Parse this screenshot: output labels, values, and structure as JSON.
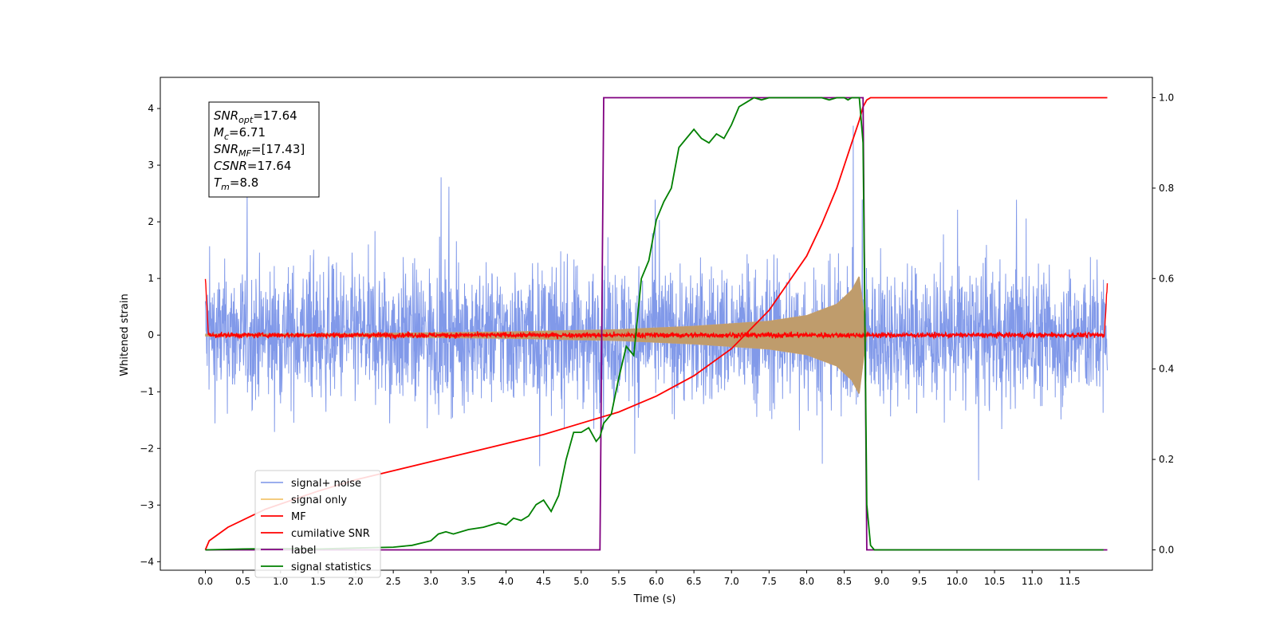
{
  "chart_data": {
    "type": "line",
    "xlabel": "Time (s)",
    "ylabel_left": "Whitened strain",
    "ylabel_right": "",
    "xlim": [
      -0.6,
      12.6
    ],
    "ylim_left": [
      -4.15,
      4.55
    ],
    "ylim_right": [
      -0.045,
      1.045
    ],
    "grid": false,
    "legend_position": "lower-left",
    "x_ticks": [
      "0.0",
      "0.5",
      "1.0",
      "1.5",
      "2.0",
      "2.5",
      "3.0",
      "3.5",
      "4.0",
      "4.5",
      "5.0",
      "5.5",
      "6.0",
      "6.5",
      "7.0",
      "7.5",
      "8.0",
      "8.5",
      "9.0",
      "9.5",
      "10.0",
      "10.5",
      "11.0",
      "11.5"
    ],
    "y_ticks_left": [
      "−4",
      "−3",
      "−2",
      "−1",
      "0",
      "1",
      "2",
      "3",
      "4"
    ],
    "y_ticks_right": [
      "0.0",
      "0.2",
      "0.4",
      "0.6",
      "0.8",
      "1.0"
    ],
    "annotation": {
      "lines": [
        {
          "base": "SNR",
          "sub": "opt",
          "value": "=17.64"
        },
        {
          "base": "M",
          "sub": "c",
          "value": "=6.71"
        },
        {
          "base": "SNR",
          "sub": "MF",
          "value": "=[17.43]"
        },
        {
          "base": "CSNR",
          "sub": "",
          "value": "=17.64"
        },
        {
          "base": "T",
          "sub": "m",
          "value": "=8.8"
        }
      ]
    },
    "series": [
      {
        "name": "signal+ noise",
        "axis": "left",
        "color": "#7a93e8",
        "style": "noise",
        "x_range": [
          0.0,
          12.0
        ],
        "typical_range": [
          -1.6,
          1.7
        ],
        "peak_range": [
          -3.8,
          4.15
        ]
      },
      {
        "name": "signal only",
        "axis": "left",
        "color": "#f2c46d",
        "style": "chirp",
        "x_range": [
          0.0,
          8.8
        ],
        "envelope": {
          "x": [
            0.0,
            2.0,
            4.0,
            5.5,
            6.5,
            7.5,
            8.0,
            8.4,
            8.6,
            8.7,
            8.8
          ],
          "amp": [
            0.02,
            0.03,
            0.06,
            0.1,
            0.16,
            0.25,
            0.35,
            0.55,
            0.8,
            1.05,
            0.0
          ]
        }
      },
      {
        "name": "MF",
        "axis": "left",
        "color": "#ff0000",
        "style": "mf",
        "x_range": [
          0.0,
          12.0
        ],
        "edge_value": 1.0,
        "noise_amp": 0.05
      },
      {
        "name": "cumilative SNR",
        "axis": "right",
        "color": "#ff0000",
        "x": [
          0.0,
          0.05,
          0.3,
          0.8,
          1.5,
          2.0,
          2.5,
          3.0,
          3.5,
          4.0,
          4.5,
          5.0,
          5.5,
          6.0,
          6.5,
          7.0,
          7.5,
          8.0,
          8.2,
          8.4,
          8.5,
          8.6,
          8.7,
          8.75,
          8.8,
          8.85,
          12.0
        ],
        "values": [
          0.0,
          0.02,
          0.05,
          0.09,
          0.13,
          0.155,
          0.175,
          0.195,
          0.215,
          0.235,
          0.255,
          0.28,
          0.305,
          0.34,
          0.385,
          0.445,
          0.53,
          0.65,
          0.72,
          0.8,
          0.85,
          0.9,
          0.95,
          0.98,
          0.995,
          1.0,
          1.0
        ]
      },
      {
        "name": "label",
        "axis": "right",
        "color": "#800080",
        "x": [
          0.0,
          5.25,
          5.3,
          8.75,
          8.8,
          12.0
        ],
        "values": [
          0.0,
          0.0,
          1.0,
          1.0,
          0.0,
          0.0
        ]
      },
      {
        "name": "signal statistics",
        "axis": "right",
        "color": "#008000",
        "x": [
          0.0,
          0.5,
          1.0,
          1.5,
          2.0,
          2.5,
          2.75,
          3.0,
          3.1,
          3.2,
          3.3,
          3.5,
          3.7,
          3.9,
          4.0,
          4.1,
          4.2,
          4.3,
          4.4,
          4.5,
          4.6,
          4.7,
          4.8,
          4.9,
          5.0,
          5.1,
          5.2,
          5.25,
          5.3,
          5.4,
          5.5,
          5.6,
          5.7,
          5.8,
          5.85,
          5.9,
          6.0,
          6.1,
          6.2,
          6.3,
          6.4,
          6.5,
          6.6,
          6.7,
          6.8,
          6.9,
          7.0,
          7.1,
          7.2,
          7.3,
          7.4,
          7.5,
          7.6,
          7.7,
          7.8,
          7.9,
          8.0,
          8.1,
          8.2,
          8.3,
          8.4,
          8.5,
          8.55,
          8.6,
          8.7,
          8.75,
          8.8,
          8.85,
          8.9,
          9.0,
          9.5,
          10.0,
          10.5,
          11.0,
          11.5,
          11.95
        ],
        "values": [
          0.0,
          0.002,
          0.003,
          0.002,
          0.004,
          0.006,
          0.01,
          0.02,
          0.035,
          0.04,
          0.035,
          0.045,
          0.05,
          0.06,
          0.055,
          0.07,
          0.065,
          0.075,
          0.1,
          0.11,
          0.085,
          0.12,
          0.2,
          0.26,
          0.26,
          0.27,
          0.24,
          0.25,
          0.28,
          0.3,
          0.38,
          0.45,
          0.43,
          0.6,
          0.62,
          0.64,
          0.73,
          0.77,
          0.8,
          0.89,
          0.91,
          0.93,
          0.91,
          0.9,
          0.92,
          0.91,
          0.94,
          0.98,
          0.99,
          1.0,
          0.995,
          1.0,
          1.0,
          1.0,
          1.0,
          1.0,
          1.0,
          1.0,
          1.0,
          0.995,
          1.0,
          1.0,
          0.995,
          1.0,
          1.0,
          0.9,
          0.1,
          0.01,
          0.0,
          0.0,
          0.0,
          0.0,
          0.0,
          0.0,
          0.0,
          0.0
        ]
      }
    ]
  }
}
